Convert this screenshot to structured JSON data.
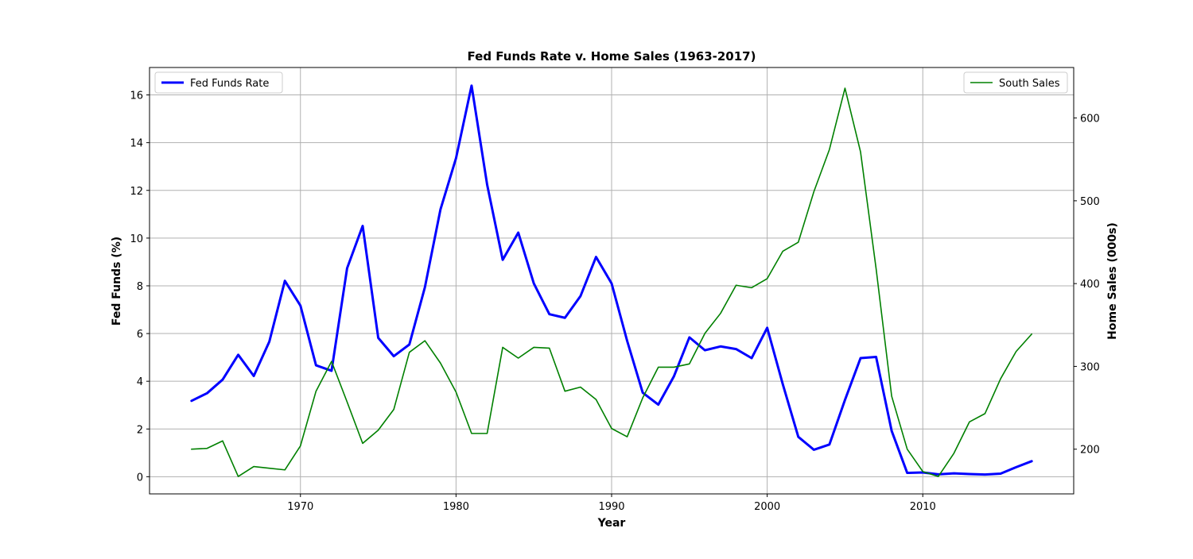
{
  "chart_data": {
    "type": "line",
    "title": "Fed Funds Rate v. Home Sales (1963-2017)",
    "xlabel": "Year",
    "ylabel": "Fed Funds (%)",
    "y2label": "Home Sales (000s)",
    "xlim": [
      1960.3,
      2019.7
    ],
    "ylim": [
      -0.72,
      17.15
    ],
    "y2lim": [
      146.0,
      661.0
    ],
    "x_ticks": [
      1970,
      1980,
      1990,
      2000,
      2010
    ],
    "y_ticks": [
      0,
      2,
      4,
      6,
      8,
      10,
      12,
      14,
      16
    ],
    "y2_ticks": [
      200,
      300,
      400,
      500,
      600
    ],
    "grid": true,
    "x": [
      1963,
      1964,
      1965,
      1966,
      1967,
      1968,
      1969,
      1970,
      1971,
      1972,
      1973,
      1974,
      1975,
      1976,
      1977,
      1978,
      1979,
      1980,
      1981,
      1982,
      1983,
      1984,
      1985,
      1986,
      1987,
      1988,
      1989,
      1990,
      1991,
      1992,
      1993,
      1994,
      1995,
      1996,
      1997,
      1998,
      1999,
      2000,
      2001,
      2002,
      2003,
      2004,
      2005,
      2006,
      2007,
      2008,
      2009,
      2010,
      2011,
      2012,
      2013,
      2014,
      2015,
      2016,
      2017
    ],
    "series": [
      {
        "name": "Fed Funds Rate",
        "axis": "left",
        "color": "#0000ff",
        "legend_position": "top-left",
        "values": [
          3.18,
          3.5,
          4.07,
          5.11,
          4.22,
          5.66,
          8.21,
          7.17,
          4.67,
          4.44,
          8.74,
          10.51,
          5.82,
          5.05,
          5.54,
          7.94,
          11.2,
          13.35,
          16.39,
          12.24,
          9.09,
          10.23,
          8.1,
          6.81,
          6.66,
          7.57,
          9.21,
          8.1,
          5.69,
          3.52,
          3.02,
          4.2,
          5.84,
          5.3,
          5.46,
          5.35,
          4.97,
          6.24,
          3.88,
          1.67,
          1.13,
          1.35,
          3.22,
          4.97,
          5.02,
          1.92,
          0.16,
          0.18,
          0.1,
          0.14,
          0.11,
          0.09,
          0.13,
          0.4,
          0.65
        ]
      },
      {
        "name": "South Sales",
        "axis": "right",
        "color": "#008000",
        "legend_position": "top-right",
        "values": [
          200,
          201,
          210,
          167,
          179,
          177,
          175,
          204,
          270,
          306,
          257,
          207,
          223,
          248,
          317,
          331,
          304,
          269,
          219,
          219,
          323,
          310,
          323,
          322,
          270,
          275,
          260,
          225,
          215,
          262,
          299,
          299,
          303,
          340,
          364,
          398,
          395,
          406,
          439,
          450,
          511,
          562,
          636,
          559,
          418,
          264,
          200,
          173,
          167,
          195,
          233,
          243,
          285,
          318,
          339
        ]
      }
    ]
  }
}
